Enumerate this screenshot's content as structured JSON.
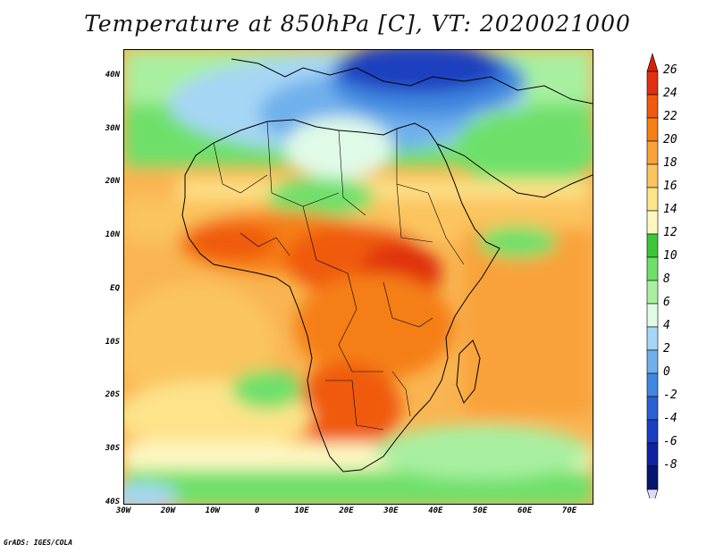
{
  "title": "Temperature at 850hPa [C], VT: 2020021000",
  "footer": "GrADS: IGES/COLA",
  "map": {
    "region": "Africa",
    "lon_range": [
      -30,
      75
    ],
    "lat_range": [
      -40,
      45
    ],
    "lat_ticks": [
      {
        "label": "40N",
        "lat": 40
      },
      {
        "label": "30N",
        "lat": 30
      },
      {
        "label": "20N",
        "lat": 20
      },
      {
        "label": "10N",
        "lat": 10
      },
      {
        "label": "EQ",
        "lat": 0
      },
      {
        "label": "10S",
        "lat": -10
      },
      {
        "label": "20S",
        "lat": -20
      },
      {
        "label": "30S",
        "lat": -30
      },
      {
        "label": "40S",
        "lat": -40
      }
    ],
    "lon_ticks": [
      {
        "label": "30W",
        "lon": -30
      },
      {
        "label": "20W",
        "lon": -20
      },
      {
        "label": "10W",
        "lon": -10
      },
      {
        "label": "0",
        "lon": 0
      },
      {
        "label": "10E",
        "lon": 10
      },
      {
        "label": "20E",
        "lon": 20
      },
      {
        "label": "30E",
        "lon": 30
      },
      {
        "label": "40E",
        "lon": 40
      },
      {
        "label": "50E",
        "lon": 50
      },
      {
        "label": "60E",
        "lon": 60
      },
      {
        "label": "70E",
        "lon": 70
      }
    ]
  },
  "colorbar": {
    "levels": [
      "26",
      "24",
      "22",
      "20",
      "18",
      "16",
      "14",
      "12",
      "10",
      "8",
      "6",
      "4",
      "2",
      "0",
      "-2",
      "-4",
      "-6",
      "-8"
    ],
    "colors": [
      "#e03010",
      "#f05a10",
      "#f57f14",
      "#f9a23a",
      "#fbc45e",
      "#fde38a",
      "#fdf8c2",
      "#3ec63a",
      "#6ee06a",
      "#a8f0a0",
      "#e0fae8",
      "#a6d6f5",
      "#6fb0ec",
      "#3f87df",
      "#2a60d2",
      "#1a3fc0",
      "#0f23a0",
      "#071570"
    ],
    "top_arrow_color": "#d82000",
    "bottom_arrow_color": "#dcdcf8"
  }
}
